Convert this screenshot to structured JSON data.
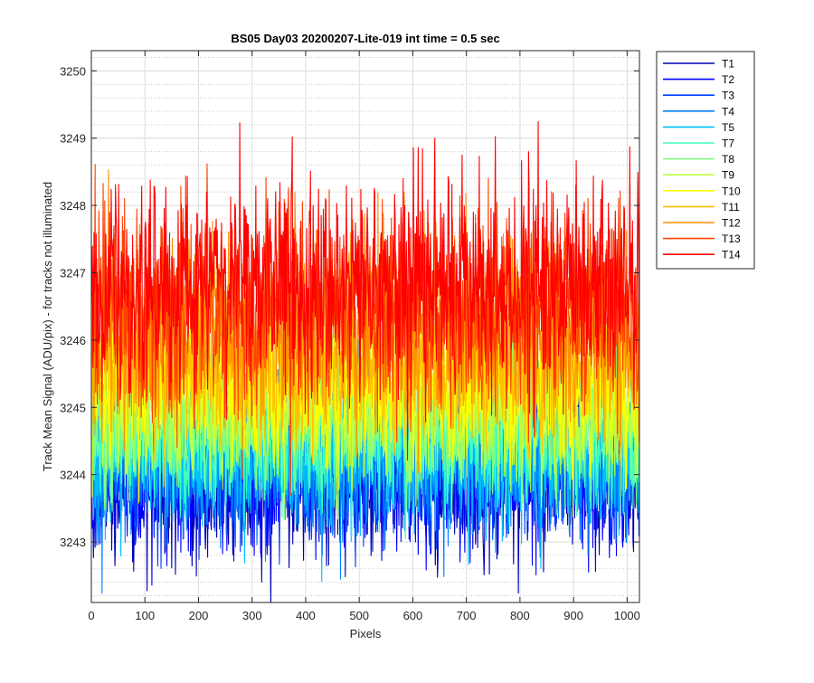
{
  "chart_data": {
    "type": "line",
    "title": "BS05 Day03 20200207-Lite-019 int time = 0.5 sec",
    "xlabel": "Pixels",
    "ylabel": "Track Mean Signal (ADU/pix) - for tracks not illuminated",
    "xlim": [
      0,
      1023
    ],
    "ylim": [
      3242.1,
      3250.3
    ],
    "xticks": [
      0,
      100,
      200,
      300,
      400,
      500,
      600,
      700,
      800,
      900,
      1000
    ],
    "yticks": [
      3243,
      3244,
      3245,
      3246,
      3247,
      3248,
      3249,
      3250
    ],
    "grid": true,
    "minor_grid": true,
    "legend_position": "outside-top-right",
    "points_per_series": 1024,
    "series": [
      {
        "name": "T1",
        "color": "#0000b4",
        "mean": 3243.9,
        "noise_sd": 0.55
      },
      {
        "name": "T2",
        "color": "#0000ff",
        "mean": 3244.0,
        "noise_sd": 0.55
      },
      {
        "name": "T3",
        "color": "#0040ff",
        "mean": 3244.1,
        "noise_sd": 0.55
      },
      {
        "name": "T4",
        "color": "#0080ff",
        "mean": 3244.2,
        "noise_sd": 0.55
      },
      {
        "name": "T5",
        "color": "#00c0ff",
        "mean": 3244.3,
        "noise_sd": 0.55
      },
      {
        "name": "T7",
        "color": "#40ffc0",
        "mean": 3244.6,
        "noise_sd": 0.55
      },
      {
        "name": "T8",
        "color": "#80ff80",
        "mean": 3244.8,
        "noise_sd": 0.55
      },
      {
        "name": "T9",
        "color": "#c0ff40",
        "mean": 3245.0,
        "noise_sd": 0.55
      },
      {
        "name": "T10",
        "color": "#ffff00",
        "mean": 3245.3,
        "noise_sd": 0.55
      },
      {
        "name": "T11",
        "color": "#ffc000",
        "mean": 3245.7,
        "noise_sd": 0.6
      },
      {
        "name": "T12",
        "color": "#ff9000",
        "mean": 3246.2,
        "noise_sd": 0.7
      },
      {
        "name": "T13",
        "color": "#ff4000",
        "mean": 3246.5,
        "noise_sd": 0.75
      },
      {
        "name": "T14",
        "color": "#ff0000",
        "mean": 3246.8,
        "noise_sd": 0.8
      }
    ]
  }
}
